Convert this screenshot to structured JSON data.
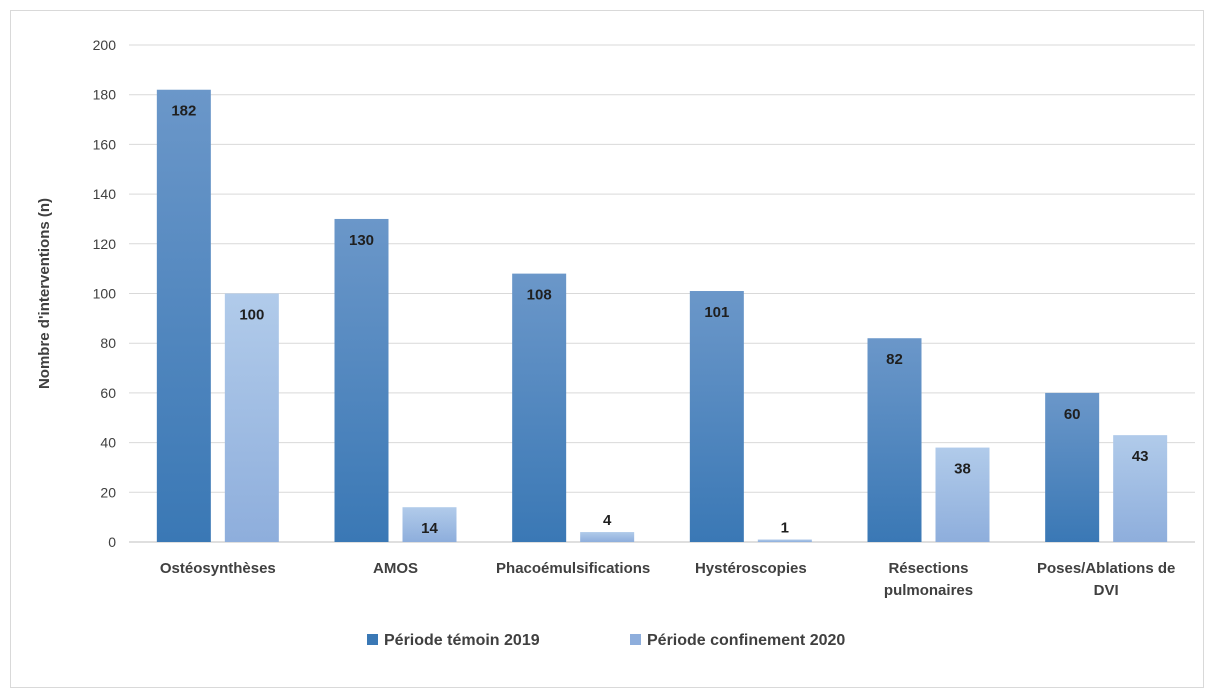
{
  "chart_data": {
    "type": "bar",
    "title": "",
    "xlabel": "",
    "ylabel": "Nombre d'interventions (n)",
    "ylim": [
      0,
      200
    ],
    "yticks": [
      0,
      20,
      40,
      60,
      80,
      100,
      120,
      140,
      160,
      180,
      200
    ],
    "grid": true,
    "legend_position": "bottom",
    "categories": [
      [
        "Ostéosynthèses"
      ],
      [
        "AMOS"
      ],
      [
        "Phacoémulsifications"
      ],
      [
        "Hystéroscopies"
      ],
      [
        "Résections",
        "pulmonaires"
      ],
      [
        "Poses/Ablations de",
        "DVI"
      ]
    ],
    "series": [
      {
        "name": "Période témoin 2019",
        "values": [
          182,
          130,
          108,
          101,
          82,
          60
        ],
        "color_top": "#6b97c9",
        "color_bottom": "#3a78b5"
      },
      {
        "name": "Période confinement 2020",
        "values": [
          100,
          14,
          4,
          1,
          38,
          43
        ],
        "color_top": "#b1cbea",
        "color_bottom": "#8eaedc"
      }
    ],
    "colors": {
      "axis_text": "#404040",
      "grid": "#d9d9d9",
      "data_label": "#1f1f1f"
    }
  }
}
